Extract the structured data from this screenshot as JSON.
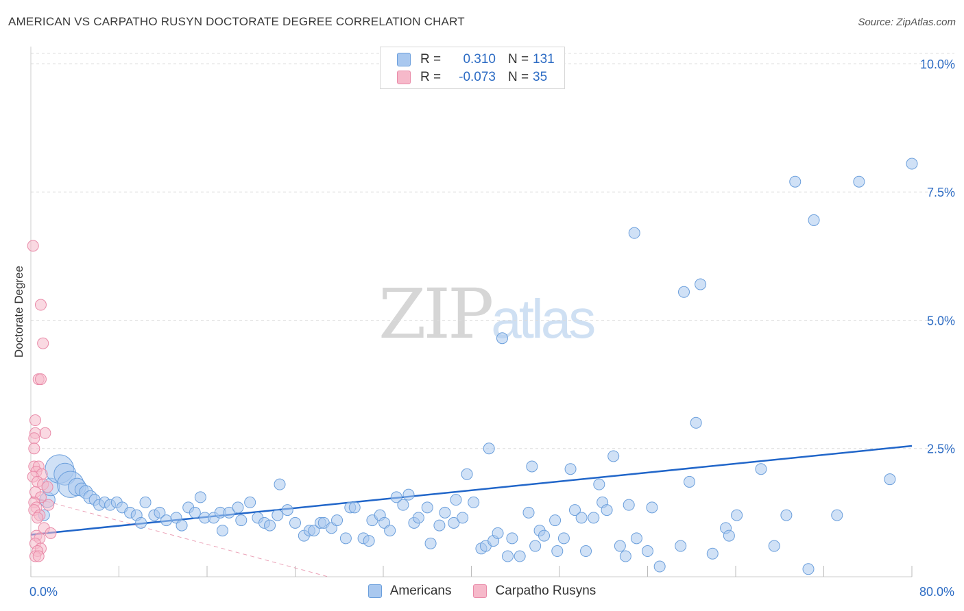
{
  "header": {
    "title": "AMERICAN VS CARPATHO RUSYN DOCTORATE DEGREE CORRELATION CHART",
    "source": "Source: ZipAtlas.com"
  },
  "watermark": {
    "zip": "ZIP",
    "atlas": "atlas"
  },
  "legend": {
    "rows": [
      {
        "r_label": "R =",
        "r_value": "0.310",
        "n_label": "N =",
        "n_value": "131"
      },
      {
        "r_label": "R =",
        "r_value": "-0.073",
        "n_label": "N =",
        "n_value": "35"
      }
    ]
  },
  "bottom_legend": {
    "americans": "Americans",
    "rusyns": "Carpatho Rusyns"
  },
  "colors": {
    "blue_fill": "#a9c8ef",
    "blue_stroke": "#6b9fdc",
    "blue_line": "#2166c9",
    "pink_fill": "#f6b9ca",
    "pink_stroke": "#e98aa8",
    "pink_line": "#e27a99",
    "grid": "#dcdcdc",
    "tick_text": "#2d6cc4"
  },
  "chart_data": {
    "type": "scatter",
    "title": "AMERICAN VS CARPATHO RUSYN DOCTORATE DEGREE CORRELATION CHART",
    "xlabel": "",
    "ylabel": "Doctorate Degree",
    "xlim": [
      0,
      80
    ],
    "ylim": [
      0,
      10.2
    ],
    "x_tick_labels": [
      "0.0%",
      "80.0%"
    ],
    "y_ticks": [
      2.5,
      5.0,
      7.5,
      10.0
    ],
    "y_tick_labels": [
      "2.5%",
      "5.0%",
      "7.5%",
      "10.0%"
    ],
    "grid": true,
    "legend_position": "top-center",
    "series": [
      {
        "name": "Americans",
        "r": 0.31,
        "n": 131,
        "trend": {
          "x": [
            0,
            80
          ],
          "y": [
            0.82,
            2.55
          ]
        },
        "points": [
          [
            1.2,
            1.2,
            1
          ],
          [
            1.5,
            1.5,
            1.4
          ],
          [
            1.8,
            1.75,
            1.6
          ],
          [
            2.6,
            2.1,
            2.6
          ],
          [
            3.1,
            2.0,
            2
          ],
          [
            3.6,
            1.8,
            2.4
          ],
          [
            4.2,
            1.75,
            1.6
          ],
          [
            4.6,
            1.7,
            1.2
          ],
          [
            5.0,
            1.65,
            1.2
          ],
          [
            5.4,
            1.55,
            1.2
          ],
          [
            5.8,
            1.5,
            1
          ],
          [
            6.2,
            1.4,
            1
          ],
          [
            6.7,
            1.45,
            1
          ],
          [
            7.2,
            1.4,
            1
          ],
          [
            7.8,
            1.45,
            1
          ],
          [
            8.3,
            1.35,
            1
          ],
          [
            9.0,
            1.25,
            1
          ],
          [
            9.6,
            1.2,
            1
          ],
          [
            10.4,
            1.45,
            1
          ],
          [
            10.0,
            1.05,
            1
          ],
          [
            11.2,
            1.2,
            1
          ],
          [
            11.7,
            1.25,
            1
          ],
          [
            12.3,
            1.1,
            1
          ],
          [
            13.2,
            1.15,
            1
          ],
          [
            13.7,
            1.0,
            1
          ],
          [
            14.3,
            1.35,
            1
          ],
          [
            14.9,
            1.25,
            1
          ],
          [
            15.4,
            1.55,
            1
          ],
          [
            15.8,
            1.15,
            1
          ],
          [
            16.6,
            1.15,
            1
          ],
          [
            17.2,
            1.25,
            1
          ],
          [
            17.4,
            0.9,
            1
          ],
          [
            18.0,
            1.25,
            1
          ],
          [
            18.8,
            1.35,
            1
          ],
          [
            19.1,
            1.1,
            1
          ],
          [
            19.9,
            1.45,
            1
          ],
          [
            20.6,
            1.15,
            1
          ],
          [
            21.2,
            1.05,
            1
          ],
          [
            21.7,
            1.0,
            1
          ],
          [
            22.4,
            1.2,
            1
          ],
          [
            22.6,
            1.8,
            1
          ],
          [
            23.3,
            1.3,
            1
          ],
          [
            24.0,
            1.05,
            1
          ],
          [
            24.8,
            0.8,
            1
          ],
          [
            25.3,
            0.9,
            1
          ],
          [
            25.7,
            0.9,
            1
          ],
          [
            26.3,
            1.05,
            1
          ],
          [
            26.6,
            1.05,
            1
          ],
          [
            27.3,
            0.95,
            1
          ],
          [
            27.8,
            1.1,
            1
          ],
          [
            28.6,
            0.75,
            1
          ],
          [
            29.0,
            1.35,
            1
          ],
          [
            29.4,
            1.35,
            1
          ],
          [
            30.2,
            0.75,
            1
          ],
          [
            30.7,
            0.7,
            1
          ],
          [
            31.0,
            1.1,
            1
          ],
          [
            31.7,
            1.2,
            1
          ],
          [
            32.1,
            1.05,
            1
          ],
          [
            32.6,
            0.9,
            1
          ],
          [
            33.2,
            1.55,
            1
          ],
          [
            33.8,
            1.4,
            1
          ],
          [
            34.3,
            1.6,
            1
          ],
          [
            34.8,
            1.05,
            1
          ],
          [
            35.2,
            1.15,
            1
          ],
          [
            36.0,
            1.35,
            1
          ],
          [
            36.3,
            0.65,
            1
          ],
          [
            37.1,
            1.0,
            1
          ],
          [
            37.6,
            1.25,
            1
          ],
          [
            38.4,
            1.05,
            1
          ],
          [
            38.6,
            1.5,
            1
          ],
          [
            39.2,
            1.15,
            1
          ],
          [
            39.6,
            2.0,
            1
          ],
          [
            40.2,
            1.45,
            1
          ],
          [
            40.9,
            0.55,
            1
          ],
          [
            41.3,
            0.6,
            1
          ],
          [
            41.6,
            2.5,
            1
          ],
          [
            42.0,
            0.7,
            1
          ],
          [
            42.4,
            0.85,
            1
          ],
          [
            42.8,
            4.65,
            1
          ],
          [
            43.3,
            0.4,
            1
          ],
          [
            43.7,
            0.75,
            1
          ],
          [
            44.4,
            0.4,
            1
          ],
          [
            45.2,
            1.25,
            1
          ],
          [
            45.5,
            2.15,
            1
          ],
          [
            45.8,
            0.6,
            1
          ],
          [
            46.2,
            0.9,
            1
          ],
          [
            46.6,
            0.8,
            1
          ],
          [
            47.6,
            1.1,
            1
          ],
          [
            47.8,
            0.5,
            1
          ],
          [
            48.4,
            0.75,
            1
          ],
          [
            49.0,
            2.1,
            1
          ],
          [
            49.4,
            1.3,
            1
          ],
          [
            50.0,
            1.15,
            1
          ],
          [
            50.4,
            0.5,
            1
          ],
          [
            51.1,
            1.15,
            1
          ],
          [
            51.6,
            1.8,
            1
          ],
          [
            51.9,
            1.45,
            1
          ],
          [
            52.3,
            1.3,
            1
          ],
          [
            52.9,
            2.35,
            1
          ],
          [
            53.5,
            0.6,
            1
          ],
          [
            54.0,
            0.4,
            1
          ],
          [
            54.3,
            1.4,
            1
          ],
          [
            54.8,
            6.7,
            1
          ],
          [
            55.0,
            0.75,
            1
          ],
          [
            56.0,
            0.5,
            1
          ],
          [
            56.4,
            1.35,
            1
          ],
          [
            57.1,
            0.2,
            1
          ],
          [
            59.0,
            0.6,
            1
          ],
          [
            59.3,
            5.55,
            1
          ],
          [
            59.8,
            1.85,
            1
          ],
          [
            60.4,
            3.0,
            1
          ],
          [
            60.8,
            5.7,
            1
          ],
          [
            61.9,
            0.45,
            1
          ],
          [
            63.1,
            0.95,
            1
          ],
          [
            63.4,
            0.8,
            1
          ],
          [
            64.1,
            1.2,
            1
          ],
          [
            66.3,
            2.1,
            1
          ],
          [
            67.5,
            0.6,
            1
          ],
          [
            68.6,
            1.2,
            1
          ],
          [
            69.4,
            7.7,
            1
          ],
          [
            70.6,
            0.15,
            1
          ],
          [
            71.1,
            6.95,
            1
          ],
          [
            73.2,
            1.2,
            1
          ],
          [
            75.2,
            7.7,
            1
          ],
          [
            78.0,
            1.9,
            1
          ],
          [
            80.0,
            8.05,
            1
          ]
        ]
      },
      {
        "name": "Carpatho Rusyns",
        "r": -0.073,
        "n": 35,
        "trend": {
          "x": [
            0,
            27
          ],
          "y": [
            1.55,
            0.0
          ]
        },
        "points": [
          [
            0.2,
            6.45,
            1
          ],
          [
            0.4,
            3.05,
            1
          ],
          [
            0.9,
            5.3,
            1
          ],
          [
            1.1,
            4.55,
            1
          ],
          [
            0.7,
            3.85,
            1
          ],
          [
            0.9,
            3.85,
            1
          ],
          [
            1.3,
            2.8,
            1
          ],
          [
            0.4,
            2.8,
            1
          ],
          [
            0.3,
            2.7,
            1
          ],
          [
            0.3,
            2.5,
            1
          ],
          [
            0.3,
            2.15,
            1
          ],
          [
            0.7,
            2.15,
            1
          ],
          [
            0.5,
            2.05,
            1
          ],
          [
            1.0,
            2.0,
            1
          ],
          [
            0.2,
            1.95,
            1
          ],
          [
            0.6,
            1.85,
            1
          ],
          [
            1.1,
            1.8,
            1
          ],
          [
            1.5,
            1.75,
            1
          ],
          [
            0.4,
            1.65,
            1
          ],
          [
            0.9,
            1.55,
            1
          ],
          [
            0.3,
            1.45,
            1
          ],
          [
            1.6,
            1.4,
            1
          ],
          [
            0.5,
            1.35,
            1
          ],
          [
            0.3,
            1.3,
            1
          ],
          [
            0.8,
            1.2,
            1
          ],
          [
            0.6,
            1.15,
            1
          ],
          [
            1.2,
            0.95,
            1
          ],
          [
            1.8,
            0.85,
            1
          ],
          [
            0.5,
            0.8,
            1
          ],
          [
            0.8,
            0.75,
            1
          ],
          [
            0.4,
            0.65,
            1
          ],
          [
            0.9,
            0.55,
            1
          ],
          [
            0.6,
            0.5,
            1
          ],
          [
            0.4,
            0.4,
            1
          ],
          [
            0.7,
            0.4,
            1
          ]
        ]
      }
    ]
  }
}
